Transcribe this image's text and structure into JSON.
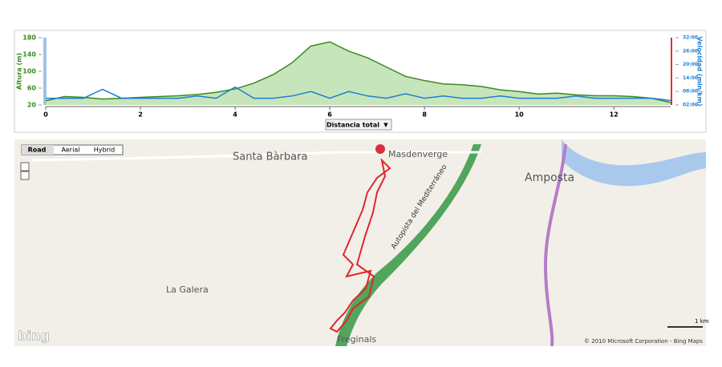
{
  "chart_data": {
    "type": "line",
    "y_label": "Altura (m)",
    "y2_label": "Velocidad (min/km)",
    "x": [
      0,
      0.4,
      0.8,
      1.2,
      1.6,
      2.0,
      2.4,
      2.8,
      3.2,
      3.6,
      4.0,
      4.4,
      4.8,
      5.2,
      5.6,
      6.0,
      6.4,
      6.8,
      7.2,
      7.6,
      8.0,
      8.4,
      8.8,
      9.2,
      9.6,
      10.0,
      10.4,
      10.8,
      11.2,
      11.6,
      12.0,
      12.4,
      12.8,
      13.2
    ],
    "series": [
      {
        "name": "Altura (m)",
        "color": "#3a8a1e",
        "fill": "#b9deaa",
        "values": [
          30,
          40,
          38,
          34,
          36,
          38,
          40,
          42,
          45,
          50,
          58,
          72,
          92,
          120,
          160,
          170,
          148,
          132,
          110,
          88,
          78,
          70,
          68,
          64,
          56,
          52,
          46,
          48,
          44,
          42,
          42,
          40,
          36,
          26
        ]
      },
      {
        "name": "Velocidad (min/km)",
        "color": "#1a7fd4",
        "axis": "y2",
        "values": [
          5,
          5,
          5,
          9,
          5,
          5,
          5,
          5,
          6,
          5,
          10,
          5,
          5,
          6,
          8,
          5,
          8,
          6,
          5,
          7,
          5,
          6,
          5,
          5,
          6,
          5,
          5,
          5,
          6,
          5,
          5,
          5,
          5,
          4
        ]
      }
    ],
    "xlim": [
      0,
      13.2
    ],
    "xticks": [
      0,
      2,
      4,
      6,
      8,
      10,
      12
    ],
    "ylim": [
      20,
      180
    ],
    "yticks": [
      20,
      60,
      100,
      140,
      180
    ],
    "y2lim": [
      2,
      32
    ],
    "y2ticks": [
      {
        "value": 2,
        "label": "02:00"
      },
      {
        "value": 8,
        "label": "08:00"
      },
      {
        "value": 14,
        "label": "14:00"
      },
      {
        "value": 20,
        "label": "20:00"
      },
      {
        "value": 26,
        "label": "26:00"
      },
      {
        "value": 32,
        "label": "32:00"
      }
    ],
    "selector": "Distancia total"
  },
  "map": {
    "buttons": [
      "Road",
      "Aerial",
      "Hybrid"
    ],
    "places": [
      "Santa Bàrbara",
      "Masdenverge",
      "Amposta",
      "La Galera",
      "Freginals"
    ],
    "highway": "Autopista del Mediterráneo",
    "scale": "1 km",
    "logo": "bing",
    "copyright": "© 2010 Microsoft Corporation - Bing Maps"
  }
}
